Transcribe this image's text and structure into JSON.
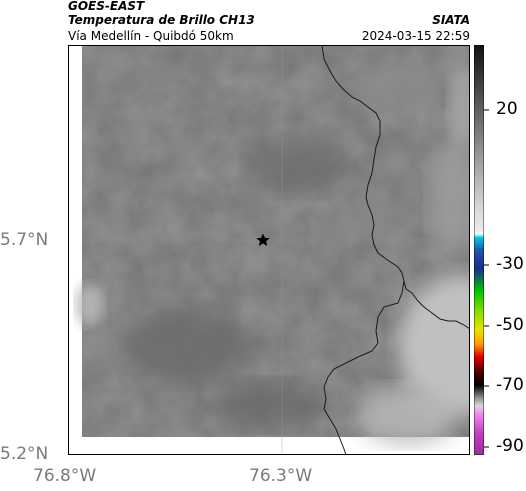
{
  "header": {
    "satellite": "GOES-EAST",
    "product": "Temperatura de Brillo CH13",
    "location": "Vía Medellín - Quibdó 50km",
    "organization": "SIATA",
    "datetime": "2024-03-15 22:59"
  },
  "map": {
    "lat_ticks": [
      "5.7°N",
      "5.2°N"
    ],
    "lon_ticks": [
      "76.8°W",
      "76.3°W"
    ],
    "marker": "star-marker",
    "colors": {
      "base_gray": "#747474",
      "dark_gray": "#6a6a6a",
      "cloud_light": "#c4c4c4",
      "border": "#1a1a1a",
      "grid": "#9a9a9a"
    }
  },
  "colorbar": {
    "tick_labels": [
      "20",
      "-30",
      "-50",
      "-70",
      "-90"
    ],
    "colors": {
      "top": "#111111",
      "gray_mid": "#d9d9d9",
      "cyan": "#00c8dc",
      "blue": "#1c2b8e",
      "green": "#00c400",
      "yellow": "#e6e600",
      "red": "#e10000",
      "black": "#000000",
      "magenta": "#c03cc0"
    }
  }
}
